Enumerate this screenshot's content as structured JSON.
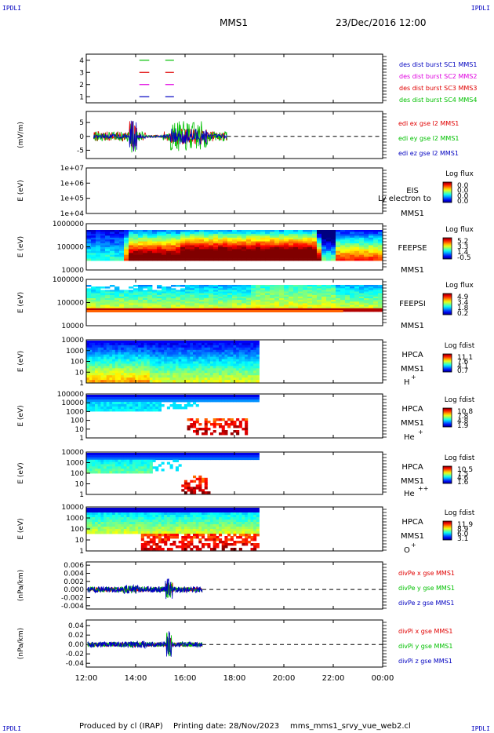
{
  "corner_label": "IPDLI",
  "header": {
    "title": "MMS1",
    "datetime": "23/Dec/2016 12:00"
  },
  "footer": {
    "produced_by": "Produced by cl (IRAP)",
    "printing_date": "Printing date: 28/Nov/2023",
    "filename": "mms_mms1_srvy_vue_web2.cl"
  },
  "colors": {
    "red": "#e00000",
    "green": "#00c000",
    "blue": "#0000c0",
    "magenta": "#e000e0",
    "black": "#000000"
  },
  "x_axis": {
    "ticks": [
      "12:00",
      "14:00",
      "16:00",
      "18:00",
      "20:00",
      "22:00",
      "00:00"
    ],
    "range_hours": [
      12,
      24
    ]
  },
  "chart_data": [
    {
      "type": "line",
      "id": "burst",
      "yticks": [
        "4",
        "3",
        "2",
        "1"
      ],
      "ylim": [
        0.5,
        4.5
      ],
      "legend": [
        {
          "label": "des dist burst SC1 MMS1",
          "color": "#0000c0"
        },
        {
          "label": "des dist burst SC2 MMS2",
          "color": "#e000e0"
        },
        {
          "label": "des dist burst SC3 MMS3",
          "color": "#e00000"
        },
        {
          "label": "des dist burst SC4 MMS4",
          "color": "#00c000"
        }
      ],
      "segments": [
        {
          "y": 4,
          "color": "#00c000",
          "x": [
            14.15,
            14.55
          ]
        },
        {
          "y": 4,
          "color": "#00c000",
          "x": [
            15.2,
            15.55
          ]
        },
        {
          "y": 3,
          "color": "#e00000",
          "x": [
            14.15,
            14.55
          ]
        },
        {
          "y": 3,
          "color": "#e00000",
          "x": [
            15.2,
            15.55
          ]
        },
        {
          "y": 2,
          "color": "#e000e0",
          "x": [
            14.15,
            14.55
          ]
        },
        {
          "y": 2,
          "color": "#e000e0",
          "x": [
            15.2,
            15.55
          ]
        },
        {
          "y": 1,
          "color": "#0000c0",
          "x": [
            14.15,
            14.55
          ]
        },
        {
          "y": 1,
          "color": "#0000c0",
          "x": [
            15.2,
            15.55
          ]
        }
      ]
    },
    {
      "type": "line",
      "id": "efield",
      "ylabel": "(mV/m)",
      "yticks": [
        "5",
        "0",
        "-5"
      ],
      "ylim": [
        -8,
        9
      ],
      "data_end_hour": 17.7,
      "legend": [
        {
          "label": "edi ex gse l2 MMS1",
          "color": "#e00000"
        },
        {
          "label": "edi ey gse l2 MMS1",
          "color": "#00c000"
        },
        {
          "label": "edi ez gse l2 MMS1",
          "color": "#0000c0"
        }
      ]
    },
    {
      "type": "heatmap",
      "id": "eis",
      "ylabel": "E (eV)",
      "yticks": [
        "1e+07",
        "1e+06",
        "1e+05",
        "1e+04"
      ],
      "instrument": "EIS",
      "spacecraft": "MMS1",
      "note": "Ly electron to",
      "colorbar": {
        "title": "Log flux",
        "ticks": [
          "0.0",
          "0.0",
          "0.0",
          "0.0"
        ]
      }
    },
    {
      "type": "heatmap",
      "id": "feepse",
      "ylabel": "E (eV)",
      "yticks": [
        "1000000",
        "100000",
        "10000"
      ],
      "instrument": "FEEPSE",
      "spacecraft": "MMS1",
      "colorbar": {
        "title": "Log flux",
        "ticks": [
          "5.2",
          "3.3",
          "1.4",
          "-0.5"
        ]
      }
    },
    {
      "type": "heatmap",
      "id": "feepsi",
      "ylabel": "E (eV)",
      "yticks": [
        "1000000",
        "100000",
        "10000"
      ],
      "instrument": "FEEPSI",
      "spacecraft": "MMS1",
      "colorbar": {
        "title": "Log flux",
        "ticks": [
          "4.9",
          "3.4",
          "1.8",
          "0.2"
        ]
      }
    },
    {
      "type": "heatmap",
      "id": "hpca_h",
      "ylabel": "E (eV)",
      "yticks": [
        "10000",
        "1000",
        "100",
        "10",
        "1"
      ],
      "instrument": "HPCA",
      "spacecraft": "MMS1",
      "species": "H",
      "charge": "+",
      "data_end_hour": 19.0,
      "colorbar": {
        "title": "Log fdist",
        "ticks": [
          "11.1",
          "7.6",
          "4.1",
          "0.7"
        ]
      }
    },
    {
      "type": "heatmap",
      "id": "hpca_he",
      "ylabel": "E (eV)",
      "yticks": [
        "100000",
        "10000",
        "1000",
        "100",
        "10",
        "1"
      ],
      "instrument": "HPCA",
      "spacecraft": "MMS1",
      "species": "He",
      "charge": "+",
      "data_end_hour": 19.0,
      "colorbar": {
        "title": "Log fdist",
        "ticks": [
          "10.8",
          "7.8",
          "4.8",
          "1.9"
        ]
      }
    },
    {
      "type": "heatmap",
      "id": "hpca_hepp",
      "ylabel": "E (eV)",
      "yticks": [
        "10000",
        "1000",
        "100",
        "10",
        "1"
      ],
      "instrument": "HPCA",
      "spacecraft": "MMS1",
      "species": "He",
      "charge": "++",
      "data_end_hour": 19.0,
      "colorbar": {
        "title": "Log fdist",
        "ticks": [
          "10.5",
          "7.5",
          "4.6",
          "1.6"
        ]
      }
    },
    {
      "type": "heatmap",
      "id": "hpca_o",
      "ylabel": "E (eV)",
      "yticks": [
        "10000",
        "1000",
        "100",
        "10",
        "1"
      ],
      "instrument": "HPCA",
      "spacecraft": "MMS1",
      "species": "O",
      "charge": "+",
      "data_end_hour": 19.0,
      "colorbar": {
        "title": "Log fdist",
        "ticks": [
          "11.9",
          "8.9",
          "6.0",
          "3.1"
        ]
      }
    },
    {
      "type": "line",
      "id": "divpe",
      "ylabel": "(nPa/km)",
      "yticks": [
        "0.006",
        "0.004",
        "0.002",
        "0.000",
        "-0.002",
        "-0.004"
      ],
      "ylim": [
        -0.0048,
        0.0068
      ],
      "data_end_hour": 16.7,
      "legend": [
        {
          "label": "divPe x gse MMS1",
          "color": "#e00000"
        },
        {
          "label": "divPe y gse MMS1",
          "color": "#00c000"
        },
        {
          "label": "divPe z gse MMS1",
          "color": "#0000c0"
        }
      ]
    },
    {
      "type": "line",
      "id": "divpi",
      "ylabel": "(nPa/km)",
      "yticks": [
        "0.04",
        "0.02",
        "0.00",
        "-0.02",
        "-0.04"
      ],
      "ylim": [
        -0.048,
        0.052
      ],
      "data_end_hour": 16.7,
      "legend": [
        {
          "label": "divPi x gse MMS1",
          "color": "#e00000"
        },
        {
          "label": "divPi y gse MMS1",
          "color": "#00c000"
        },
        {
          "label": "divPi z gse MMS1",
          "color": "#0000c0"
        }
      ]
    }
  ]
}
